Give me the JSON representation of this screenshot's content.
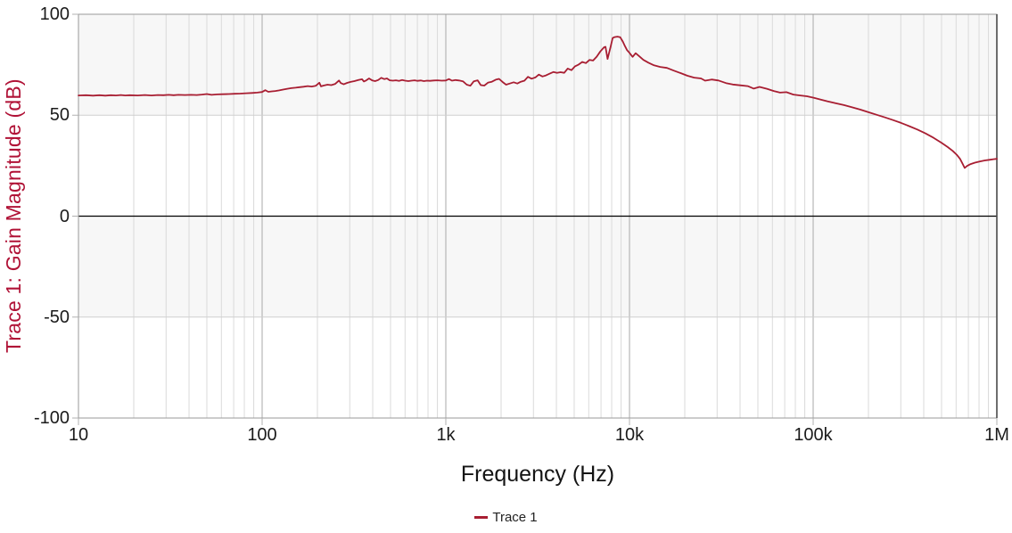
{
  "colors": {
    "trace": "#a81e32",
    "axis_label": "#b01236",
    "band_shade": "#f7f7f7",
    "grid_minor": "#dadada",
    "grid_major": "#a8a8a8",
    "grid_horizontal": "#cfcfcf",
    "zero_line": "#000000",
    "border": "#9a9a9a",
    "border_right": "#4a4a4a",
    "tick_mark": "#b0b0b0",
    "tick_text": "#1b1b1b"
  },
  "chart_data": {
    "type": "line",
    "title": "",
    "xlabel": "Frequency (Hz)",
    "ylabel": "Trace 1: Gain Magnitude (dB)",
    "x_scale": "log",
    "x_range": [
      10,
      1000000
    ],
    "y_range": [
      -100,
      100
    ],
    "grid": true,
    "legend_position": "bottom-center",
    "x_ticks": [
      {
        "value": 10,
        "label": "10"
      },
      {
        "value": 100,
        "label": "100"
      },
      {
        "value": 1000,
        "label": "1k"
      },
      {
        "value": 10000,
        "label": "10k"
      },
      {
        "value": 100000,
        "label": "100k"
      },
      {
        "value": 1000000,
        "label": "1M"
      }
    ],
    "y_ticks": [
      {
        "value": 100,
        "label": "100"
      },
      {
        "value": 50,
        "label": "50"
      },
      {
        "value": 0,
        "label": "0"
      },
      {
        "value": -50,
        "label": "-50"
      },
      {
        "value": -100,
        "label": "-100"
      }
    ],
    "shaded_bands_db": [
      [
        100,
        50
      ],
      [
        0,
        -50
      ]
    ],
    "zero_line_db": 0,
    "legend": [
      {
        "label": "Trace 1",
        "color": "#a81e32"
      }
    ],
    "series": [
      {
        "name": "Trace 1",
        "color": "#a81e32",
        "points": [
          [
            10,
            59.8
          ],
          [
            11,
            59.9
          ],
          [
            12,
            59.7
          ],
          [
            13,
            59.9
          ],
          [
            14,
            59.7
          ],
          [
            15,
            59.9
          ],
          [
            16,
            59.8
          ],
          [
            17,
            60.0
          ],
          [
            18,
            59.8
          ],
          [
            19,
            59.9
          ],
          [
            21,
            59.8
          ],
          [
            23,
            60.0
          ],
          [
            25,
            59.8
          ],
          [
            27,
            60.0
          ],
          [
            29,
            59.9
          ],
          [
            31,
            60.1
          ],
          [
            33,
            59.9
          ],
          [
            35,
            60.1
          ],
          [
            38,
            60.0
          ],
          [
            41,
            60.1
          ],
          [
            44,
            60.0
          ],
          [
            47,
            60.2
          ],
          [
            50,
            60.5
          ],
          [
            53,
            60.1
          ],
          [
            57,
            60.3
          ],
          [
            61,
            60.4
          ],
          [
            66,
            60.5
          ],
          [
            71,
            60.6
          ],
          [
            76,
            60.7
          ],
          [
            82,
            60.9
          ],
          [
            88,
            61.0
          ],
          [
            94,
            61.2
          ],
          [
            100,
            61.5
          ],
          [
            104,
            62.4
          ],
          [
            108,
            61.6
          ],
          [
            113,
            61.8
          ],
          [
            118,
            62.0
          ],
          [
            124,
            62.3
          ],
          [
            130,
            62.7
          ],
          [
            137,
            63.1
          ],
          [
            144,
            63.4
          ],
          [
            152,
            63.6
          ],
          [
            160,
            63.9
          ],
          [
            168,
            64.1
          ],
          [
            177,
            64.4
          ],
          [
            186,
            64.2
          ],
          [
            196,
            64.6
          ],
          [
            205,
            66.1
          ],
          [
            209,
            64.3
          ],
          [
            216,
            64.7
          ],
          [
            227,
            65.1
          ],
          [
            238,
            64.9
          ],
          [
            250,
            65.5
          ],
          [
            262,
            67.2
          ],
          [
            268,
            65.9
          ],
          [
            278,
            65.3
          ],
          [
            290,
            66.0
          ],
          [
            303,
            66.5
          ],
          [
            318,
            66.9
          ],
          [
            334,
            67.4
          ],
          [
            350,
            67.8
          ],
          [
            358,
            66.7
          ],
          [
            368,
            67.2
          ],
          [
            382,
            68.2
          ],
          [
            398,
            67.2
          ],
          [
            412,
            66.9
          ],
          [
            428,
            67.4
          ],
          [
            445,
            68.5
          ],
          [
            462,
            67.9
          ],
          [
            478,
            68.2
          ],
          [
            495,
            67.3
          ],
          [
            515,
            67.1
          ],
          [
            535,
            67.3
          ],
          [
            556,
            67.0
          ],
          [
            578,
            67.4
          ],
          [
            600,
            67.1
          ],
          [
            625,
            66.9
          ],
          [
            650,
            67.1
          ],
          [
            676,
            67.3
          ],
          [
            702,
            67.0
          ],
          [
            730,
            67.2
          ],
          [
            760,
            66.9
          ],
          [
            790,
            67.1
          ],
          [
            820,
            67.0
          ],
          [
            860,
            67.2
          ],
          [
            900,
            67.3
          ],
          [
            950,
            67.1
          ],
          [
            1000,
            67.2
          ],
          [
            1040,
            67.9
          ],
          [
            1080,
            67.1
          ],
          [
            1130,
            67.4
          ],
          [
            1180,
            67.2
          ],
          [
            1240,
            66.8
          ],
          [
            1300,
            65.1
          ],
          [
            1360,
            64.6
          ],
          [
            1420,
            66.8
          ],
          [
            1490,
            67.3
          ],
          [
            1550,
            64.9
          ],
          [
            1620,
            64.7
          ],
          [
            1700,
            66.2
          ],
          [
            1780,
            66.6
          ],
          [
            1870,
            67.6
          ],
          [
            1950,
            68.0
          ],
          [
            2040,
            66.4
          ],
          [
            2130,
            65.1
          ],
          [
            2230,
            65.7
          ],
          [
            2340,
            66.3
          ],
          [
            2450,
            65.7
          ],
          [
            2560,
            66.6
          ],
          [
            2680,
            67.1
          ],
          [
            2800,
            69.0
          ],
          [
            2930,
            68.1
          ],
          [
            3070,
            68.7
          ],
          [
            3210,
            70.1
          ],
          [
            3360,
            69.2
          ],
          [
            3510,
            69.7
          ],
          [
            3680,
            70.6
          ],
          [
            3850,
            71.4
          ],
          [
            4030,
            71.0
          ],
          [
            4210,
            71.3
          ],
          [
            4410,
            71.0
          ],
          [
            4610,
            73.1
          ],
          [
            4830,
            72.3
          ],
          [
            5050,
            74.2
          ],
          [
            5290,
            75.1
          ],
          [
            5530,
            76.4
          ],
          [
            5790,
            75.8
          ],
          [
            6060,
            77.4
          ],
          [
            6340,
            77.1
          ],
          [
            6630,
            79.0
          ],
          [
            6940,
            81.6
          ],
          [
            7260,
            83.6
          ],
          [
            7400,
            83.9
          ],
          [
            7600,
            77.9
          ],
          [
            7900,
            84.0
          ],
          [
            8100,
            88.2
          ],
          [
            8300,
            88.7
          ],
          [
            8600,
            88.9
          ],
          [
            8900,
            88.6
          ],
          [
            9200,
            86.5
          ],
          [
            9400,
            84.6
          ],
          [
            9700,
            82.2
          ],
          [
            10000,
            80.9
          ],
          [
            10400,
            78.9
          ],
          [
            10800,
            80.7
          ],
          [
            11300,
            79.2
          ],
          [
            11900,
            77.4
          ],
          [
            12700,
            76.0
          ],
          [
            13600,
            74.7
          ],
          [
            14700,
            73.9
          ],
          [
            16000,
            73.4
          ],
          [
            17400,
            72.1
          ],
          [
            18900,
            70.9
          ],
          [
            20600,
            69.6
          ],
          [
            22500,
            68.6
          ],
          [
            24500,
            68.2
          ],
          [
            25800,
            67.1
          ],
          [
            28000,
            67.7
          ],
          [
            30500,
            67.2
          ],
          [
            33500,
            65.9
          ],
          [
            36500,
            65.2
          ],
          [
            40000,
            64.8
          ],
          [
            44000,
            64.4
          ],
          [
            47500,
            63.2
          ],
          [
            51000,
            64.0
          ],
          [
            56000,
            63.1
          ],
          [
            61000,
            62.0
          ],
          [
            66000,
            61.2
          ],
          [
            71500,
            61.4
          ],
          [
            78000,
            60.2
          ],
          [
            85000,
            59.8
          ],
          [
            92500,
            59.4
          ],
          [
            101000,
            58.6
          ],
          [
            110000,
            57.7
          ],
          [
            120000,
            56.8
          ],
          [
            133000,
            55.9
          ],
          [
            147000,
            55.0
          ],
          [
            163000,
            53.9
          ],
          [
            180000,
            52.8
          ],
          [
            200000,
            51.5
          ],
          [
            222000,
            50.2
          ],
          [
            246000,
            48.9
          ],
          [
            272000,
            47.6
          ],
          [
            301000,
            46.2
          ],
          [
            333000,
            44.6
          ],
          [
            369000,
            42.9
          ],
          [
            408000,
            41.0
          ],
          [
            452000,
            38.8
          ],
          [
            500000,
            36.3
          ],
          [
            540000,
            34.2
          ],
          [
            575000,
            32.3
          ],
          [
            605000,
            30.4
          ],
          [
            630000,
            28.4
          ],
          [
            650000,
            26.0
          ],
          [
            668000,
            23.9
          ],
          [
            690000,
            24.9
          ],
          [
            720000,
            25.8
          ],
          [
            760000,
            26.5
          ],
          [
            810000,
            27.1
          ],
          [
            860000,
            27.6
          ],
          [
            910000,
            27.9
          ],
          [
            960000,
            28.2
          ],
          [
            1000000,
            28.4
          ]
        ]
      }
    ]
  }
}
